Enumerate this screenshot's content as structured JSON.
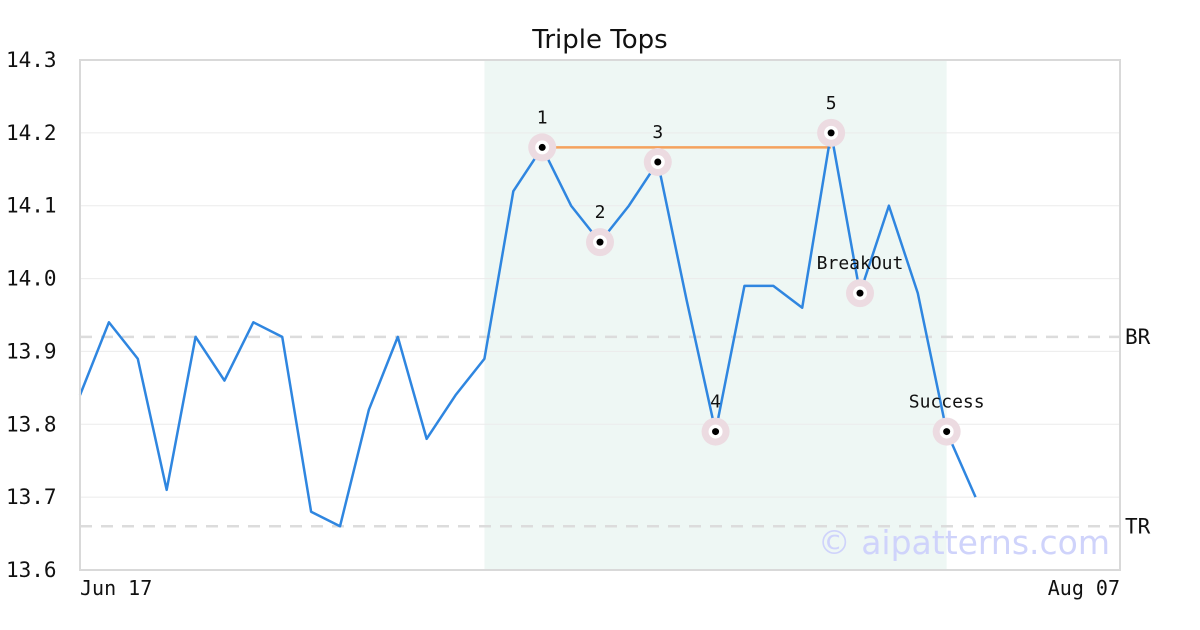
{
  "chart_data": {
    "type": "line",
    "title": "Triple Tops",
    "xlabel": "",
    "ylabel": "",
    "ylim": [
      13.6,
      14.3
    ],
    "yticks": [
      "14.3",
      "14.2",
      "14.1",
      "14.0",
      "13.9",
      "13.8",
      "13.7",
      "13.6"
    ],
    "x_first_label": "Jun 17",
    "x_last_label": "Aug 07",
    "x_range": [
      0,
      36
    ],
    "grid": true,
    "series": [
      {
        "values": [
          13.84,
          13.94,
          13.89,
          13.71,
          13.92,
          13.86,
          13.94,
          13.92,
          13.68,
          13.66,
          13.82,
          13.92,
          13.78,
          13.84,
          13.89,
          14.12,
          14.18,
          14.1,
          14.05,
          14.1,
          14.16,
          13.97,
          13.79,
          13.99,
          13.99,
          13.96,
          14.2,
          13.98,
          14.1,
          13.98,
          13.79,
          13.7
        ]
      }
    ],
    "pattern_window": [
      14,
      30
    ],
    "levels": [
      {
        "label": "BR",
        "value": 13.92
      },
      {
        "label": "TR",
        "value": 13.66
      }
    ],
    "resistance_line": {
      "x": [
        16,
        26
      ],
      "value": 14.18
    },
    "annotations": [
      {
        "label": "1",
        "x": 16,
        "y": 14.18,
        "pos": "above"
      },
      {
        "label": "2",
        "x": 18,
        "y": 14.05,
        "pos": "above"
      },
      {
        "label": "3",
        "x": 20,
        "y": 14.16,
        "pos": "above"
      },
      {
        "label": "4",
        "x": 22,
        "y": 13.79,
        "pos": "above"
      },
      {
        "label": "5",
        "x": 26,
        "y": 14.2,
        "pos": "above"
      },
      {
        "label": "BreakOut",
        "x": 27,
        "y": 13.98,
        "pos": "above"
      },
      {
        "label": "Success",
        "x": 30,
        "y": 13.79,
        "pos": "above"
      }
    ],
    "watermark": "© aipatterns.com",
    "colors": {
      "line": "#2f86e0",
      "resistance": "#f5a25d",
      "window": "#eef7f4",
      "marker_halo": "#ecdbe1",
      "level_dash": "#dcdcdc",
      "grid": "#ebebeb",
      "frame": "#d9d9d9"
    }
  }
}
